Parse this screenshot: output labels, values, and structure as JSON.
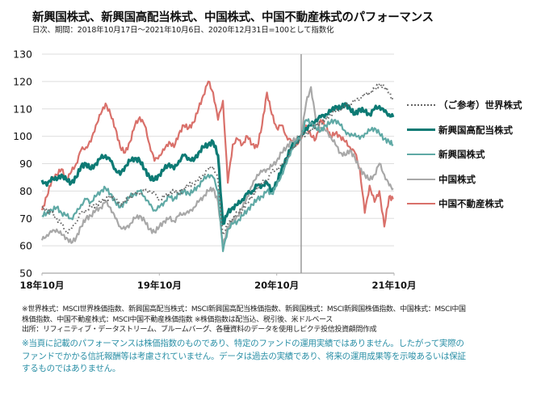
{
  "header": {
    "title": "新興国株式、新興国高配当株式、中国株式、中国不動産株式のパフォーマンス",
    "subtitle": "日次、期間：2018年10月17日～2021年10月6日、2020年12月31日=100として指数化"
  },
  "notes": [
    "※世界株式：MSCI世界株価指数、新興国高配当株式：MSCI新興国高配当株価指数、新興国株式：MSCI新興国株価指数、中国株式：MSCI中国",
    "株価指数、中国不動産株式：MSCI中国不動産株価指数 ※株価指数は配当込、税引後、米ドルベース",
    "出所：リフィニティブ・データストリーム、ブルームバーグ、各種資料のデータを使用しピクテ投信投資顧問作成"
  ],
  "disclaimer": [
    "※当頁に記載のパフォーマンスは株価指数のものであり、特定のファンドの運用実績ではありません。したがって実際の",
    "ファンドでかかる信託報酬等は考慮されていません。データは過去の実績であり、将来の運用成果等を示唆あるいは保証",
    "するものではありません。"
  ],
  "chart_data": {
    "type": "line",
    "title": "新興国株式、新興国高配当株式、中国株式、中国不動産株式のパフォーマンス",
    "xlabel": "",
    "ylabel": "",
    "ylim": [
      50,
      130
    ],
    "yticks": [
      50,
      60,
      70,
      80,
      90,
      100,
      110,
      120,
      130
    ],
    "ytick_labels": [
      "50",
      "60",
      "70",
      "80",
      "90",
      "100",
      "110",
      "120",
      "130"
    ],
    "x_unit": "months since 2018-10 (semi-monthly samples)",
    "xlim": [
      0,
      36
    ],
    "xticks": [
      0,
      12,
      24,
      36
    ],
    "xtick_labels": [
      "18年10月",
      "19年10月",
      "20年10月",
      "21年10月"
    ],
    "reference_line_x": 26.5,
    "grid": true,
    "legend_position": "right",
    "x": [
      0,
      0.5,
      1,
      1.5,
      2,
      2.5,
      3,
      3.5,
      4,
      4.5,
      5,
      5.5,
      6,
      6.5,
      7,
      7.5,
      8,
      8.5,
      9,
      9.5,
      10,
      10.5,
      11,
      11.5,
      12,
      12.5,
      13,
      13.5,
      14,
      14.5,
      15,
      15.5,
      16,
      16.5,
      17,
      17.5,
      18,
      18.5,
      19,
      19.5,
      20,
      20.5,
      21,
      21.5,
      22,
      22.5,
      23,
      23.5,
      24,
      24.5,
      25,
      25.5,
      26,
      26.5,
      27,
      27.5,
      28,
      28.5,
      29,
      29.5,
      30,
      30.5,
      31,
      31.5,
      32,
      32.5,
      33,
      33.5,
      34,
      34.5,
      35,
      35.5,
      35.9
    ],
    "series": [
      {
        "name": "（ご参考）世界株式",
        "color": "#666666",
        "style": "dotted",
        "values": [
          74,
          73,
          72,
          70,
          68,
          65,
          66,
          69,
          72,
          73,
          74,
          75,
          76,
          77,
          78,
          77,
          75,
          76,
          78,
          79,
          79,
          80,
          80,
          79,
          77,
          78,
          79,
          80,
          79,
          81,
          82,
          83,
          84,
          86,
          88,
          89,
          84,
          64,
          68,
          70,
          72,
          73,
          76,
          78,
          81,
          83,
          84,
          87,
          88,
          89,
          92,
          95,
          97,
          100,
          101,
          102,
          104,
          105,
          106,
          108,
          109,
          110,
          111,
          112,
          113,
          114,
          115,
          116,
          117,
          119,
          118,
          116,
          113
        ]
      },
      {
        "name": "新興国高配当株式",
        "color": "#0d7a74",
        "style": "solid-bold",
        "values": [
          84,
          82,
          85,
          84,
          86,
          84,
          83,
          85,
          89,
          90,
          88,
          90,
          92,
          93,
          91,
          88,
          86,
          89,
          91,
          92,
          91,
          88,
          85,
          84,
          86,
          88,
          90,
          88,
          91,
          93,
          92,
          91,
          94,
          96,
          97,
          98,
          93,
          68,
          72,
          74,
          75,
          77,
          79,
          80,
          82,
          82,
          83,
          80,
          83,
          88,
          92,
          96,
          98,
          100,
          103,
          104,
          106,
          107,
          108,
          109,
          111,
          110,
          112,
          110,
          108,
          110,
          109,
          108,
          110,
          111,
          109,
          108,
          107
        ]
      },
      {
        "name": "新興国株式",
        "color": "#5fa9a5",
        "style": "solid",
        "values": [
          71,
          72,
          73,
          74,
          72,
          71,
          70,
          72,
          75,
          77,
          76,
          78,
          80,
          81,
          79,
          76,
          74,
          76,
          78,
          79,
          80,
          78,
          75,
          73,
          74,
          76,
          78,
          77,
          79,
          80,
          79,
          80,
          82,
          84,
          86,
          85,
          80,
          58,
          66,
          68,
          69,
          71,
          73,
          75,
          77,
          78,
          80,
          79,
          82,
          86,
          90,
          95,
          98,
          100,
          106,
          105,
          103,
          102,
          104,
          105,
          106,
          104,
          102,
          100,
          101,
          99,
          101,
          102,
          103,
          101,
          99,
          98,
          97
        ]
      },
      {
        "name": "中国株式",
        "color": "#a8a8a8",
        "style": "solid",
        "values": [
          62,
          64,
          65,
          66,
          64,
          63,
          61,
          63,
          67,
          70,
          71,
          73,
          74,
          76,
          74,
          70,
          67,
          66,
          68,
          70,
          71,
          69,
          66,
          65,
          67,
          69,
          70,
          69,
          71,
          72,
          72,
          74,
          76,
          78,
          80,
          81,
          76,
          60,
          67,
          69,
          71,
          74,
          78,
          82,
          86,
          87,
          88,
          89,
          91,
          94,
          96,
          98,
          99,
          100,
          112,
          118,
          106,
          103,
          102,
          100,
          97,
          94,
          93,
          95,
          92,
          88,
          86,
          84,
          86,
          90,
          86,
          82,
          81
        ]
      },
      {
        "name": "中国不動産株式",
        "color": "#d9706a",
        "style": "solid",
        "values": [
          73,
          78,
          84,
          86,
          88,
          84,
          87,
          90,
          95,
          96,
          98,
          104,
          108,
          112,
          108,
          103,
          96,
          94,
          98,
          104,
          107,
          104,
          97,
          91,
          93,
          95,
          98,
          96,
          101,
          104,
          103,
          105,
          110,
          115,
          120,
          116,
          106,
          113,
          83,
          97,
          99,
          97,
          100,
          97,
          96,
          104,
          116,
          108,
          103,
          104,
          100,
          98,
          97,
          99,
          104,
          100,
          99,
          106,
          104,
          100,
          101,
          100,
          98,
          96,
          94,
          88,
          72,
          82,
          76,
          80,
          67,
          78,
          77
        ]
      }
    ]
  }
}
